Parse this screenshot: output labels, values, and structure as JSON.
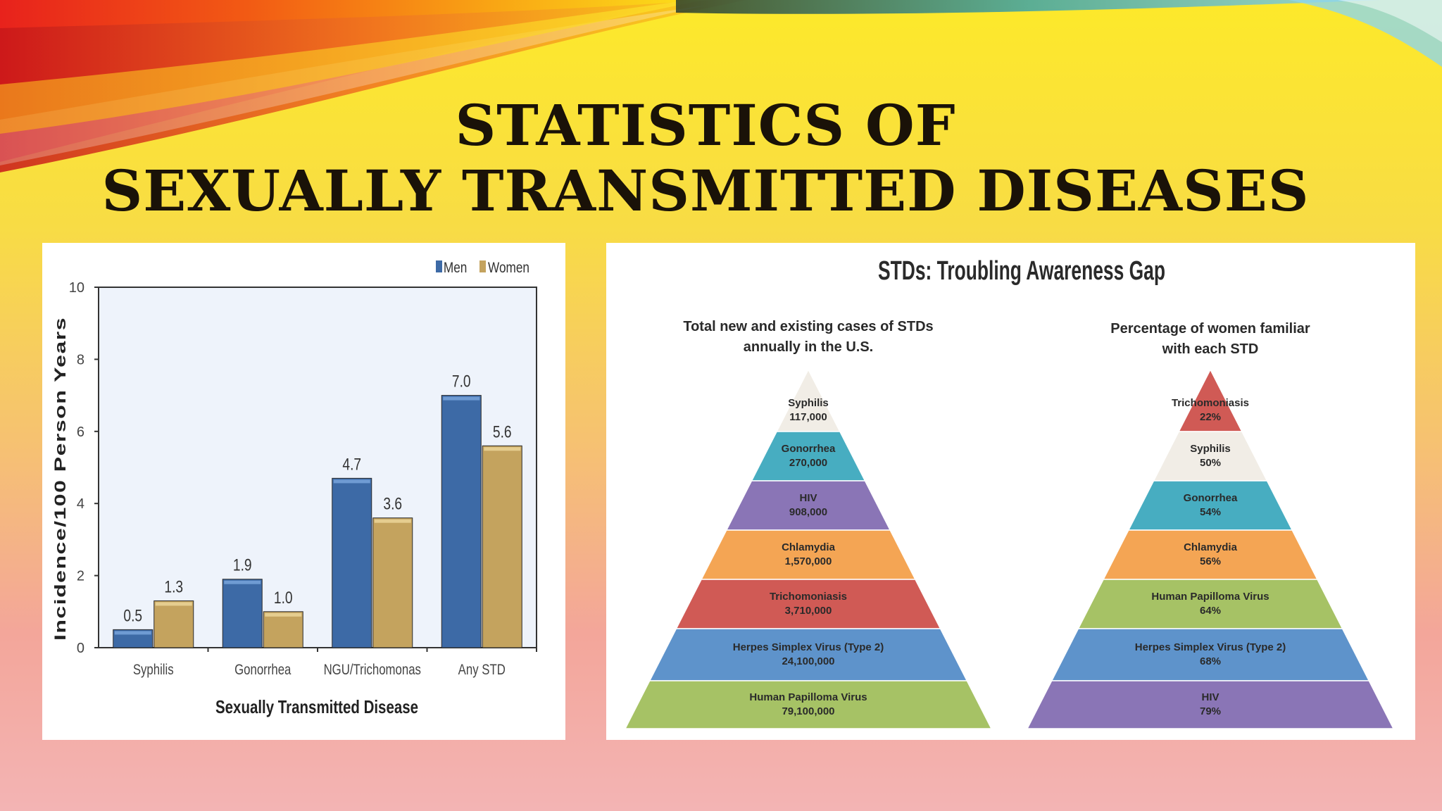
{
  "slide": {
    "title_line1": "STATISTICS OF",
    "title_line2": "SEXUALLY TRANSMITTED DISEASES"
  },
  "colors": {
    "men": "#3d6aa6",
    "women": "#c4a35e",
    "plot_bg": "#eef3fb"
  },
  "chart_data": [
    {
      "type": "bar",
      "categories": [
        "Syphilis",
        "Gonorrhea",
        "NGU/Trichomonas",
        "Any STD"
      ],
      "series": [
        {
          "name": "Men",
          "values": [
            0.5,
            1.9,
            4.7,
            7.0
          ]
        },
        {
          "name": "Women",
          "values": [
            1.3,
            1.0,
            3.6,
            5.6
          ]
        }
      ],
      "value_labels": {
        "Men": [
          "0.5",
          "1.9",
          "4.7",
          "7.0"
        ],
        "Women": [
          "1.3",
          "1.0",
          "3.6",
          "5.6"
        ]
      },
      "xlabel": "Sexually Transmitted Disease",
      "ylabel": "Incidence/100 Person Years",
      "ylim": [
        0,
        10
      ],
      "yticks": [
        0,
        2,
        4,
        6,
        8,
        10
      ],
      "legend": "top-right",
      "grid": false
    },
    {
      "type": "pyramid",
      "title": "STDs: Troubling Awareness Gap",
      "pyramids": [
        {
          "heading": [
            "Total new and existing cases of STDs",
            "annually in the U.S."
          ],
          "levels": [
            {
              "name": "Syphilis",
              "value": "117,000",
              "color": "#f1ede6"
            },
            {
              "name": "Gonorrhea",
              "value": "270,000",
              "color": "#47adc1"
            },
            {
              "name": "HIV",
              "value": "908,000",
              "color": "#8a75b6"
            },
            {
              "name": "Chlamydia",
              "value": "1,570,000",
              "color": "#f4a554"
            },
            {
              "name": "Trichomoniasis",
              "value": "3,710,000",
              "color": "#d05a55"
            },
            {
              "name": "Herpes Simplex Virus (Type 2)",
              "value": "24,100,000",
              "color": "#5e93cb"
            },
            {
              "name": "Human Papilloma Virus",
              "value": "79,100,000",
              "color": "#a6c265"
            }
          ]
        },
        {
          "heading": [
            "Percentage of women familiar",
            "with each STD"
          ],
          "levels": [
            {
              "name": "Trichomoniasis",
              "value": "22%",
              "color": "#d05a55"
            },
            {
              "name": "Syphilis",
              "value": "50%",
              "color": "#f1ede6"
            },
            {
              "name": "Gonorrhea",
              "value": "54%",
              "color": "#47adc1"
            },
            {
              "name": "Chlamydia",
              "value": "56%",
              "color": "#f4a554"
            },
            {
              "name": "Human Papilloma Virus",
              "value": "64%",
              "color": "#a6c265"
            },
            {
              "name": "Herpes Simplex Virus (Type 2)",
              "value": "68%",
              "color": "#5e93cb"
            },
            {
              "name": "HIV",
              "value": "79%",
              "color": "#8a75b6"
            }
          ]
        }
      ]
    }
  ]
}
